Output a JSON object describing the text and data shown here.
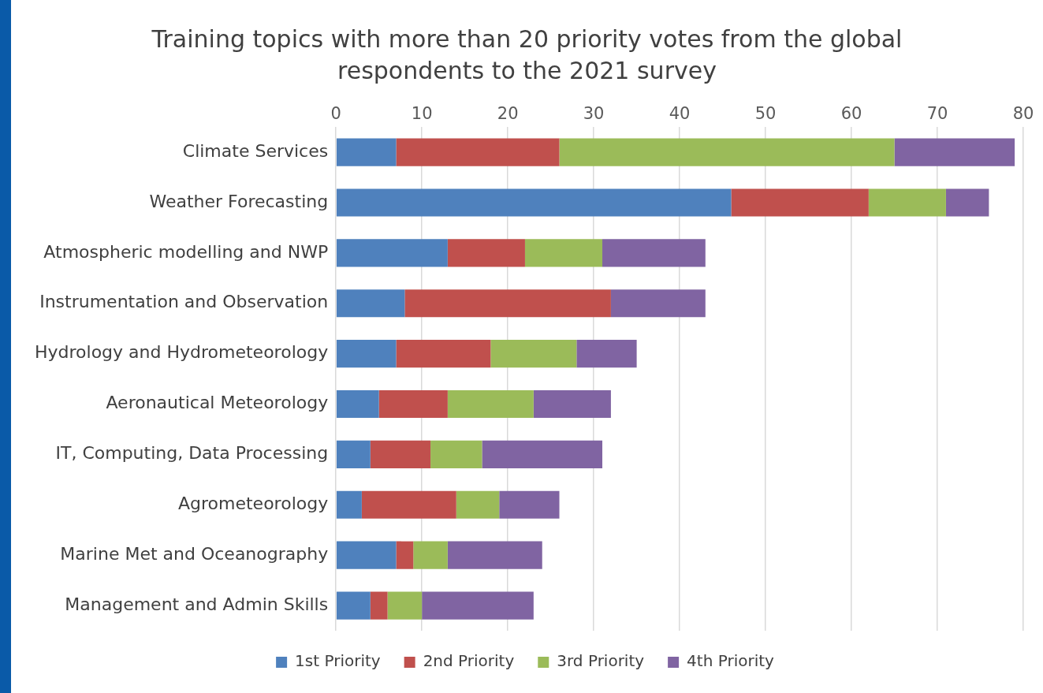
{
  "chart_data": {
    "type": "bar",
    "orientation": "horizontal",
    "stacked": true,
    "title": "Training topics with more than 20 priority votes from the global respondents to the 2021 survey",
    "categories": [
      "Climate Services",
      "Weather Forecasting",
      "Atmospheric modelling and NWP",
      "Instrumentation and Observation",
      "Hydrology and Hydrometeorology",
      "Aeronautical Meteorology",
      "IT, Computing, Data Processing",
      "Agrometeorology",
      "Marine Met and Oceanography",
      "Management and Admin Skills"
    ],
    "series": [
      {
        "name": "1st Priority",
        "color": "#4f81bd",
        "values": [
          7,
          46,
          13,
          8,
          7,
          5,
          4,
          3,
          7,
          4
        ]
      },
      {
        "name": "2nd Priority",
        "color": "#c0504d",
        "values": [
          19,
          16,
          9,
          24,
          11,
          8,
          7,
          11,
          2,
          2
        ]
      },
      {
        "name": "3rd Priority",
        "color": "#9bbb59",
        "values": [
          39,
          9,
          9,
          0,
          10,
          10,
          6,
          5,
          4,
          4
        ]
      },
      {
        "name": "4th Priority",
        "color": "#8064a2",
        "values": [
          14,
          5,
          12,
          11,
          7,
          9,
          14,
          7,
          11,
          13
        ]
      }
    ],
    "xlim": [
      0,
      80
    ],
    "xticks": [
      0,
      10,
      20,
      30,
      40,
      50,
      60,
      70,
      80
    ],
    "grid": "x",
    "legend": "bottom"
  }
}
